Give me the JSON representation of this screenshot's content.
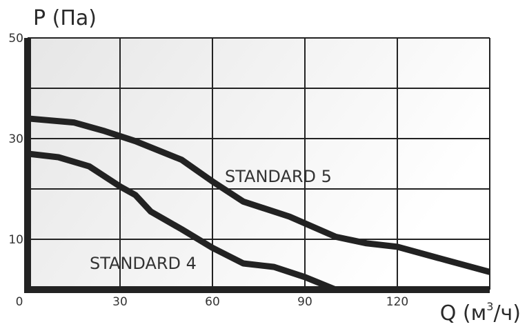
{
  "chart_data": {
    "type": "line",
    "ylabel": "P (Па)",
    "xlabel_main": "Q (м",
    "xlabel_sup": "3",
    "xlabel_tail": "/ч)",
    "xlim": [
      0,
      150
    ],
    "ylim": [
      0,
      50
    ],
    "x_ticks": [
      "0",
      "30",
      "60",
      "90",
      "120"
    ],
    "y_ticks": [
      "10",
      "30",
      "50"
    ],
    "grid": true,
    "series": [
      {
        "name": "STANDARD 5",
        "points": [
          [
            0,
            34
          ],
          [
            15,
            33.2
          ],
          [
            25,
            31.5
          ],
          [
            35,
            29.5
          ],
          [
            50,
            25.8
          ],
          [
            60,
            21.5
          ],
          [
            70,
            17.5
          ],
          [
            85,
            14.5
          ],
          [
            100,
            10.5
          ],
          [
            110,
            9.2
          ],
          [
            120,
            8.5
          ],
          [
            135,
            6
          ],
          [
            150,
            3.5
          ]
        ]
      },
      {
        "name": "STANDARD 4",
        "points": [
          [
            0,
            27
          ],
          [
            10,
            26.3
          ],
          [
            20,
            24.5
          ],
          [
            30,
            20.5
          ],
          [
            35,
            18.8
          ],
          [
            40,
            15.5
          ],
          [
            50,
            12
          ],
          [
            60,
            8.3
          ],
          [
            70,
            5.2
          ],
          [
            80,
            4.5
          ],
          [
            90,
            2.5
          ],
          [
            100,
            0
          ]
        ]
      }
    ]
  }
}
